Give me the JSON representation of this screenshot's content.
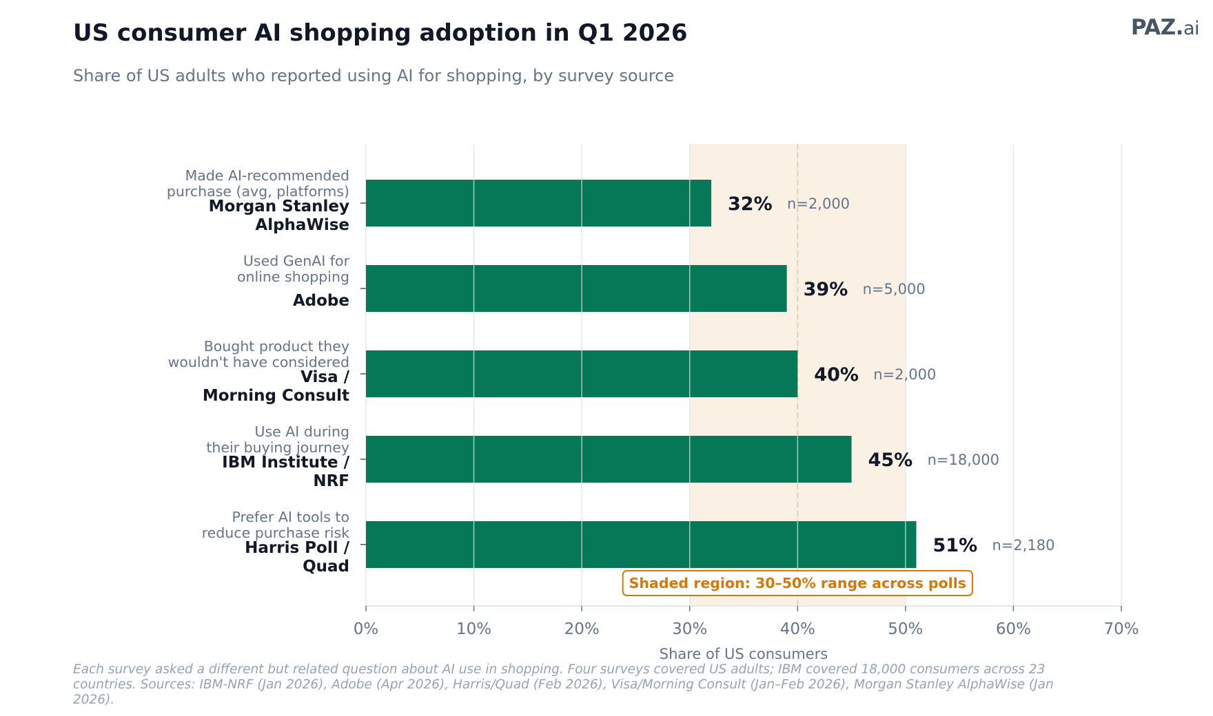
{
  "header": {
    "title": "US consumer AI shopping adoption in Q1 2026",
    "subtitle": "Share of US adults who reported using AI for shopping, by survey source",
    "logo_main": "PAZ.",
    "logo_suffix": "ai"
  },
  "footnote": "Each survey asked a different but related question about AI use in shopping. Four surveys covered US adults; IBM covered 18,000 consumers across 23 countries. Sources: IBM-NRF (Jan 2026), Adobe (Apr 2026), Harris/Quad (Feb 2026), Visa/Morning Consult (Jan–Feb 2026), Morgan Stanley AlphaWise (Jan 2026).",
  "colors": {
    "bar": "#077857",
    "shade": "#faf0e4",
    "shade_line": "#e8cfb0",
    "annotation": "#d97706",
    "grid": "#e5e7eb"
  },
  "chart_data": {
    "type": "bar",
    "orientation": "horizontal",
    "title": "US consumer AI shopping adoption in Q1 2026",
    "subtitle": "Share of US adults who reported using AI for shopping, by survey source",
    "xlabel": "Share of US consumers",
    "ylabel": "",
    "xlim": [
      0,
      70
    ],
    "xticks": [
      0,
      10,
      20,
      30,
      40,
      50,
      60,
      70
    ],
    "xtick_labels": [
      "0%",
      "10%",
      "20%",
      "30%",
      "40%",
      "50%",
      "60%",
      "70%"
    ],
    "grid": true,
    "categories": [
      {
        "source_line1": "Morgan Stanley",
        "source_line2": "AlphaWise",
        "desc_line1": "Made AI-recommended",
        "desc_line2": "purchase (avg, platforms)"
      },
      {
        "source_line1": "Adobe",
        "source_line2": "",
        "desc_line1": "Used GenAI for",
        "desc_line2": "online shopping"
      },
      {
        "source_line1": "Visa /",
        "source_line2": "Morning Consult",
        "desc_line1": "Bought product they",
        "desc_line2": "wouldn't have considered"
      },
      {
        "source_line1": "IBM Institute /",
        "source_line2": "NRF",
        "desc_line1": "Use AI during",
        "desc_line2": "their buying journey"
      },
      {
        "source_line1": "Harris Poll /",
        "source_line2": "Quad",
        "desc_line1": "Prefer AI tools to",
        "desc_line2": "reduce purchase risk"
      }
    ],
    "values": [
      32,
      39,
      40,
      45,
      51
    ],
    "value_labels": [
      "32%",
      "39%",
      "40%",
      "45%",
      "51%"
    ],
    "sample_labels": [
      "n=2,000",
      "n=5,000",
      "n=2,000",
      "n=18,000",
      "n=2,180"
    ],
    "shaded_range": [
      30,
      50
    ],
    "reference_line": 40,
    "annotation": "Shaded region: 30–50% range across polls"
  }
}
